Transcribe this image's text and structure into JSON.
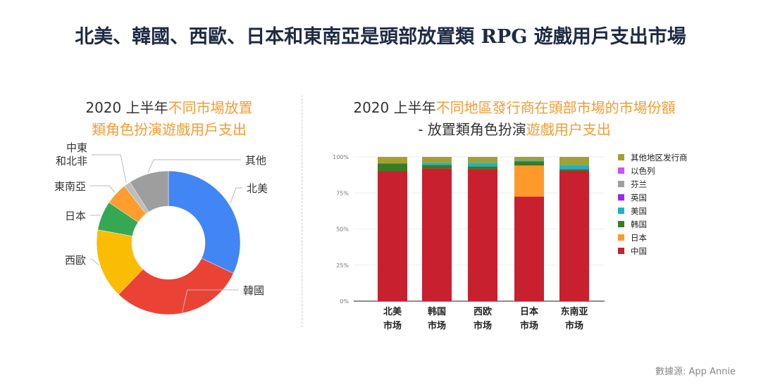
{
  "title": "北美、韓國、西歐、日本和東南亞是頭部放置類 RPG 遊戲用戶支出市場",
  "source": "數據源: App Annie",
  "chart_data": [
    {
      "type": "pie",
      "donut": true,
      "title_parts": [
        "2020 上半年",
        "不同市場放置",
        "類角色扮演遊戲用戶支出"
      ],
      "slices": [
        {
          "label": "北美",
          "value": 32,
          "color": "#4285f4"
        },
        {
          "label": "韓國",
          "value": 30.2,
          "color": "#ea4335"
        },
        {
          "label": "西歐",
          "value": 15.7,
          "color": "#fbbc04"
        },
        {
          "label": "日本",
          "value": 6.6,
          "color": "#34a853"
        },
        {
          "label": "東南亞",
          "value": 5,
          "color": "#ff9d2e"
        },
        {
          "label": "中東\n和北非",
          "value": 1.5,
          "color": "#bdbdbd"
        },
        {
          "label": "其他",
          "value": 9,
          "color": "#9e9e9e"
        }
      ]
    },
    {
      "type": "bar",
      "stacked": true,
      "title_parts": [
        "2020 上半年",
        "不同地區發行商在頭部市場的市場份額",
        "- 放置類角色扮演",
        "遊戲用户支出"
      ],
      "categories": [
        "北美\n市场",
        "韩国\n市场",
        "西欧\n市场",
        "日本\n市场",
        "东南亚\n市场"
      ],
      "yticks": [
        "0%",
        "25%",
        "50%",
        "75%",
        "100%"
      ],
      "ylim": [
        0,
        100
      ],
      "legend_position": "right",
      "series": [
        {
          "name": "中国",
          "color": "#c8202e",
          "values": [
            90,
            92,
            91.5,
            72.5,
            90.5
          ]
        },
        {
          "name": "日本",
          "color": "#ff9a2a",
          "values": [
            0,
            0,
            0,
            21.5,
            0
          ]
        },
        {
          "name": "韩国",
          "color": "#3a7a23",
          "values": [
            5.5,
            2.5,
            2,
            3,
            1
          ]
        },
        {
          "name": "美国",
          "color": "#1fb3c4",
          "values": [
            0,
            1.5,
            2.5,
            0.5,
            3
          ]
        },
        {
          "name": "英国",
          "color": "#9b27f5",
          "values": [
            0,
            0,
            0,
            0,
            0
          ]
        },
        {
          "name": "芬兰",
          "color": "#9e9e9e",
          "values": [
            0,
            0,
            0,
            0,
            0
          ]
        },
        {
          "name": "以色列",
          "color": "#d64ef5",
          "values": [
            0,
            0,
            0,
            0,
            0
          ]
        },
        {
          "name": "其他地区发行商",
          "color": "#a3a033",
          "values": [
            4.5,
            4,
            4,
            2.5,
            5.5
          ]
        }
      ]
    }
  ]
}
